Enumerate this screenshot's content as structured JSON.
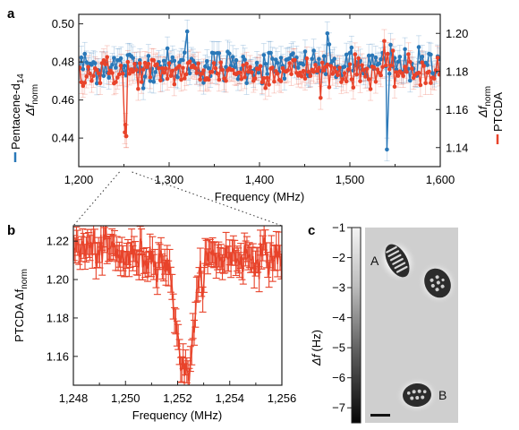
{
  "panels": {
    "a": "a",
    "b": "b",
    "c": "c"
  },
  "chart_data": [
    {
      "panel": "a",
      "type": "line",
      "xlabel": "Frequency (MHz)",
      "x_range": [
        1200,
        1600
      ],
      "x_ticks": [
        "1,200",
        "1,300",
        "1,400",
        "1,500",
        "1,600"
      ],
      "x_tick_values": [
        1200,
        1300,
        1400,
        1500,
        1600
      ],
      "ylabel_left": {
        "main": "Pentacene-d",
        "sub": "14",
        "line2_main": "Δf",
        "line2_sub": "norm"
      },
      "ylabel_right": {
        "main": "PTCDA",
        "line2_main": "Δf",
        "line2_sub": "norm"
      },
      "y_left_range": [
        0.425,
        0.505
      ],
      "y_left_ticks": [
        "0.50",
        "0.48",
        "0.46",
        "0.44"
      ],
      "y_left_tick_values": [
        0.5,
        0.48,
        0.46,
        0.44
      ],
      "y_right_range": [
        1.13,
        1.21
      ],
      "y_right_ticks": [
        "1.20",
        "1.18",
        "1.16",
        "1.14"
      ],
      "y_right_tick_values": [
        1.2,
        1.18,
        1.16,
        1.14
      ],
      "series": [
        {
          "name": "Pentacene-d14",
          "color": "#2a78b8",
          "axis": "left",
          "baseline": 0.478,
          "noise": 0.0045,
          "err": 0.006,
          "dips": [
            {
              "x": 1541,
              "y": 0.434
            }
          ],
          "peaks": [
            {
              "x": 1475,
              "y": 0.495
            },
            {
              "x": 1320,
              "y": 0.496
            },
            {
              "x": 1545,
              "y": 0.489
            }
          ]
        },
        {
          "name": "PTCDA",
          "color": "#e8432a",
          "axis": "right",
          "baseline": 1.18,
          "noise": 0.004,
          "err": 0.006,
          "dips": [
            {
              "x": 1251,
              "y": 1.148
            },
            {
              "x": 1252.5,
              "y": 1.146
            }
          ],
          "peaks": [
            {
              "x": 1538,
              "y": 1.196
            }
          ]
        }
      ],
      "zoom_x_range": [
        1248,
        1256
      ]
    },
    {
      "panel": "b",
      "type": "line",
      "xlabel": "Frequency (MHz)",
      "ylabel": {
        "main": "PTCDA Δf",
        "sub": "norm"
      },
      "x_range": [
        1248,
        1256
      ],
      "x_ticks": [
        "1,248",
        "1,250",
        "1,252",
        "1,254",
        "1,256"
      ],
      "x_tick_values": [
        1248,
        1250,
        1252,
        1254,
        1256
      ],
      "y_range": [
        1.145,
        1.228
      ],
      "y_ticks": [
        "1.22",
        "1.20",
        "1.18",
        "1.16"
      ],
      "y_tick_values": [
        1.22,
        1.2,
        1.18,
        1.16
      ],
      "series": [
        {
          "name": "PTCDA",
          "color": "#e8432a",
          "baseline": 1.212,
          "noise": 0.0045,
          "err": 0.0065,
          "dip_center": 1252.3,
          "dip_depth": 0.062,
          "dip_width": 0.32
        }
      ]
    },
    {
      "panel": "c",
      "type": "heatmap",
      "colorbar": {
        "label_main": "Δf",
        "label_unit": "(Hz)",
        "range": [
          -7.5,
          -1
        ],
        "ticks": [
          "−1",
          "−2",
          "−3",
          "−4",
          "−5",
          "−6",
          "−7"
        ],
        "tick_values": [
          -1,
          -2,
          -3,
          -4,
          -5,
          -6,
          -7
        ]
      },
      "annotations": [
        "A",
        "B"
      ]
    }
  ]
}
